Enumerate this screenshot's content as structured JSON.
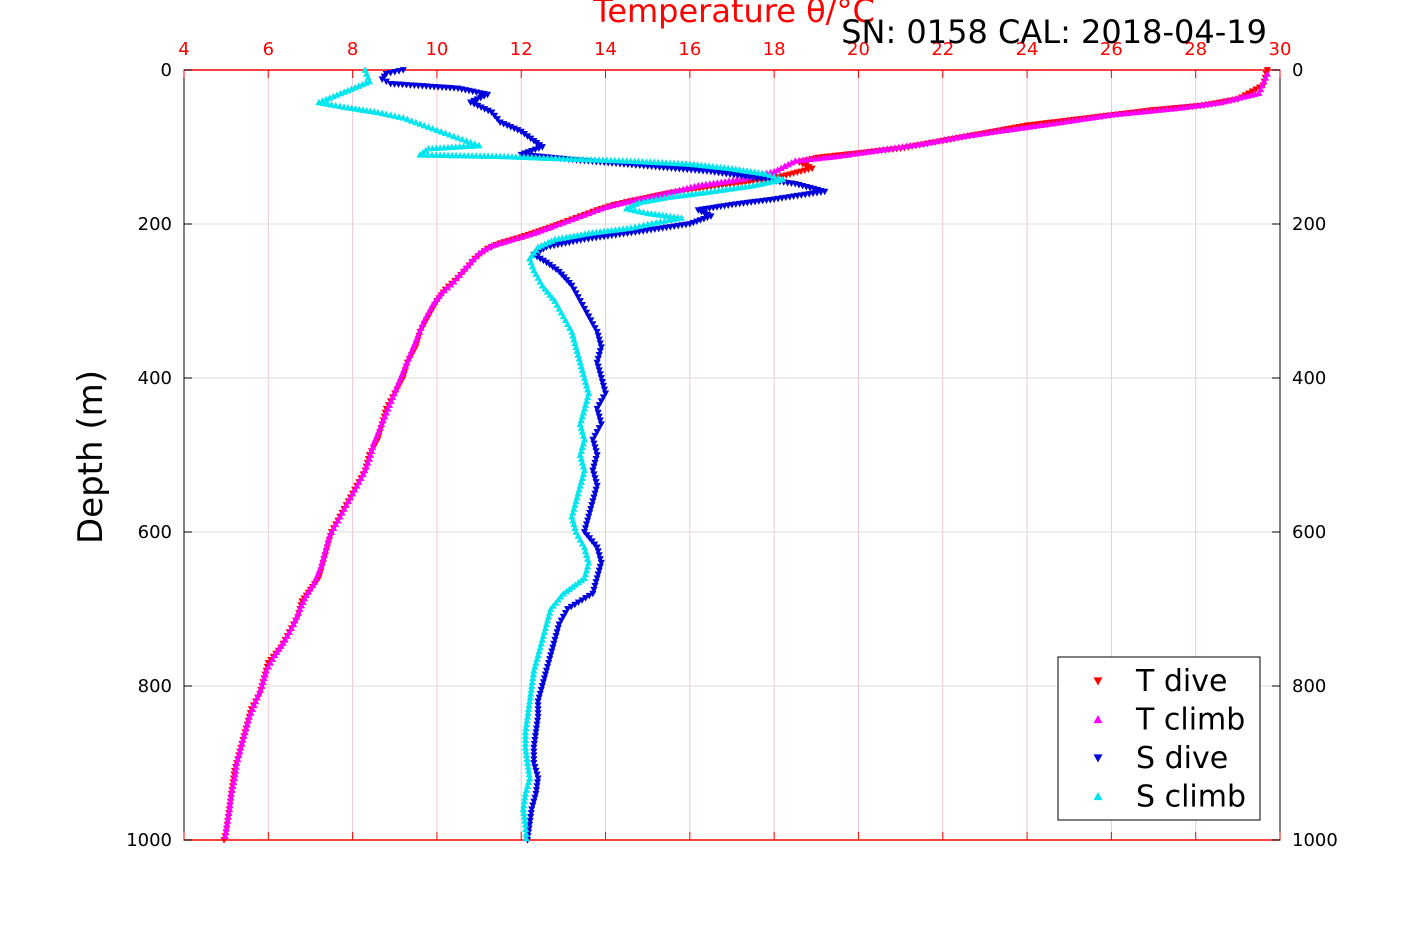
{
  "chart_data": {
    "type": "scatter",
    "title": "Temperature θ/°C",
    "subtitle": "SN: 0158  CAL: 2018-04-19",
    "xlabel": "Temperature θ/°C",
    "ylabel": "Depth (m)",
    "xlim": [
      4,
      30
    ],
    "ylim": [
      1000,
      0
    ],
    "y_reversed": true,
    "x_ticks": [
      "4",
      "6",
      "8",
      "10",
      "12",
      "14",
      "16",
      "18",
      "20",
      "22",
      "24",
      "26",
      "28",
      "30"
    ],
    "y_ticks": [
      "0",
      "200",
      "400",
      "600",
      "800",
      "1000"
    ],
    "grid": true,
    "legend_position": "bottom-right",
    "colors": {
      "x_axis": "#ff0000",
      "grid_x": "#f2c6cf",
      "grid_y": "#dddddd",
      "text": "#000000"
    },
    "series": [
      {
        "name": "T dive",
        "marker": "triangle-down",
        "color": "#ff0000",
        "points": [
          [
            29.7,
            0
          ],
          [
            29.6,
            20
          ],
          [
            29.0,
            38
          ],
          [
            28.2,
            46
          ],
          [
            27.0,
            52
          ],
          [
            25.5,
            62
          ],
          [
            24.0,
            72
          ],
          [
            23.0,
            82
          ],
          [
            22.0,
            92
          ],
          [
            21.0,
            102
          ],
          [
            20.0,
            108
          ],
          [
            19.0,
            114
          ],
          [
            18.6,
            120
          ],
          [
            18.9,
            128
          ],
          [
            18.2,
            138
          ],
          [
            17.5,
            145
          ],
          [
            16.5,
            152
          ],
          [
            15.5,
            160
          ],
          [
            14.8,
            168
          ],
          [
            14.2,
            175
          ],
          [
            13.8,
            182
          ],
          [
            13.4,
            190
          ],
          [
            13.0,
            198
          ],
          [
            12.5,
            208
          ],
          [
            12.0,
            217
          ],
          [
            11.5,
            225
          ],
          [
            11.2,
            232
          ],
          [
            10.9,
            245
          ],
          [
            10.7,
            258
          ],
          [
            10.5,
            270
          ],
          [
            10.2,
            285
          ],
          [
            10.0,
            300
          ],
          [
            9.8,
            320
          ],
          [
            9.6,
            340
          ],
          [
            9.5,
            360
          ],
          [
            9.3,
            380
          ],
          [
            9.2,
            400
          ],
          [
            9.0,
            420
          ],
          [
            8.8,
            440
          ],
          [
            8.7,
            460
          ],
          [
            8.6,
            480
          ],
          [
            8.4,
            500
          ],
          [
            8.3,
            520
          ],
          [
            8.1,
            540
          ],
          [
            7.9,
            560
          ],
          [
            7.7,
            580
          ],
          [
            7.5,
            600
          ],
          [
            7.4,
            620
          ],
          [
            7.3,
            640
          ],
          [
            7.2,
            660
          ],
          [
            7.0,
            675
          ],
          [
            6.8,
            690
          ],
          [
            6.7,
            710
          ],
          [
            6.5,
            730
          ],
          [
            6.3,
            750
          ],
          [
            6.0,
            770
          ],
          [
            5.9,
            790
          ],
          [
            5.8,
            810
          ],
          [
            5.6,
            830
          ],
          [
            5.5,
            850
          ],
          [
            5.4,
            870
          ],
          [
            5.3,
            890
          ],
          [
            5.2,
            910
          ],
          [
            5.15,
            930
          ],
          [
            5.1,
            950
          ],
          [
            5.05,
            970
          ],
          [
            5.0,
            990
          ],
          [
            4.95,
            1000
          ]
        ]
      },
      {
        "name": "T climb",
        "marker": "triangle-up",
        "color": "#ff00ff",
        "points": [
          [
            29.7,
            5
          ],
          [
            29.5,
            30
          ],
          [
            28.6,
            42
          ],
          [
            27.5,
            50
          ],
          [
            26.0,
            58
          ],
          [
            24.8,
            68
          ],
          [
            23.5,
            78
          ],
          [
            22.5,
            86
          ],
          [
            21.5,
            96
          ],
          [
            20.5,
            104
          ],
          [
            19.5,
            112
          ],
          [
            18.5,
            118
          ],
          [
            18.0,
            132
          ],
          [
            17.2,
            142
          ],
          [
            16.2,
            150
          ],
          [
            15.3,
            162
          ],
          [
            14.6,
            170
          ],
          [
            14.0,
            178
          ],
          [
            13.6,
            186
          ],
          [
            13.2,
            194
          ],
          [
            12.8,
            202
          ],
          [
            12.3,
            212
          ],
          [
            11.8,
            220
          ],
          [
            11.3,
            228
          ],
          [
            11.0,
            238
          ],
          [
            10.8,
            250
          ],
          [
            10.6,
            262
          ],
          [
            10.4,
            275
          ],
          [
            10.1,
            290
          ],
          [
            9.9,
            305
          ],
          [
            9.7,
            325
          ],
          [
            9.55,
            345
          ],
          [
            9.4,
            365
          ],
          [
            9.25,
            385
          ],
          [
            9.1,
            405
          ],
          [
            8.95,
            425
          ],
          [
            8.8,
            445
          ],
          [
            8.65,
            465
          ],
          [
            8.5,
            485
          ],
          [
            8.4,
            505
          ],
          [
            8.25,
            525
          ],
          [
            8.05,
            545
          ],
          [
            7.85,
            565
          ],
          [
            7.65,
            585
          ],
          [
            7.45,
            605
          ],
          [
            7.35,
            625
          ],
          [
            7.25,
            645
          ],
          [
            7.1,
            665
          ],
          [
            6.9,
            682
          ],
          [
            6.75,
            700
          ],
          [
            6.6,
            720
          ],
          [
            6.4,
            740
          ],
          [
            6.15,
            760
          ],
          [
            5.95,
            780
          ],
          [
            5.85,
            800
          ],
          [
            5.7,
            820
          ],
          [
            5.55,
            840
          ],
          [
            5.45,
            860
          ],
          [
            5.35,
            880
          ],
          [
            5.25,
            900
          ],
          [
            5.2,
            920
          ],
          [
            5.12,
            940
          ],
          [
            5.08,
            960
          ],
          [
            5.02,
            980
          ],
          [
            4.98,
            995
          ]
        ]
      },
      {
        "name": "S dive",
        "marker": "triangle-down",
        "color": "#0000dd",
        "points": [
          [
            9.2,
            0
          ],
          [
            8.8,
            5
          ],
          [
            8.7,
            12
          ],
          [
            8.9,
            18
          ],
          [
            10.5,
            24
          ],
          [
            11.2,
            32
          ],
          [
            10.8,
            42
          ],
          [
            11.3,
            55
          ],
          [
            11.5,
            68
          ],
          [
            12.0,
            80
          ],
          [
            12.3,
            92
          ],
          [
            12.5,
            100
          ],
          [
            12.0,
            110
          ],
          [
            13.5,
            118
          ],
          [
            15.0,
            125
          ],
          [
            16.5,
            132
          ],
          [
            17.5,
            140
          ],
          [
            18.5,
            148
          ],
          [
            19.2,
            158
          ],
          [
            18.0,
            168
          ],
          [
            17.0,
            175
          ],
          [
            16.2,
            182
          ],
          [
            16.5,
            190
          ],
          [
            16.0,
            200
          ],
          [
            14.8,
            210
          ],
          [
            13.5,
            220
          ],
          [
            12.6,
            230
          ],
          [
            12.3,
            240
          ],
          [
            12.6,
            250
          ],
          [
            12.9,
            262
          ],
          [
            13.2,
            280
          ],
          [
            13.4,
            300
          ],
          [
            13.6,
            320
          ],
          [
            13.8,
            340
          ],
          [
            13.9,
            360
          ],
          [
            13.8,
            380
          ],
          [
            13.9,
            400
          ],
          [
            14.0,
            420
          ],
          [
            13.8,
            440
          ],
          [
            13.9,
            460
          ],
          [
            13.7,
            480
          ],
          [
            13.8,
            500
          ],
          [
            13.7,
            520
          ],
          [
            13.8,
            540
          ],
          [
            13.7,
            560
          ],
          [
            13.6,
            580
          ],
          [
            13.5,
            600
          ],
          [
            13.8,
            620
          ],
          [
            13.9,
            640
          ],
          [
            13.8,
            660
          ],
          [
            13.7,
            680
          ],
          [
            13.1,
            700
          ],
          [
            12.9,
            720
          ],
          [
            12.8,
            740
          ],
          [
            12.7,
            760
          ],
          [
            12.6,
            780
          ],
          [
            12.5,
            800
          ],
          [
            12.4,
            820
          ],
          [
            12.4,
            840
          ],
          [
            12.35,
            860
          ],
          [
            12.3,
            880
          ],
          [
            12.3,
            900
          ],
          [
            12.4,
            920
          ],
          [
            12.35,
            940
          ],
          [
            12.25,
            960
          ],
          [
            12.2,
            980
          ],
          [
            12.15,
            1000
          ]
        ]
      },
      {
        "name": "S climb",
        "marker": "triangle-up",
        "color": "#00e5ee",
        "points": [
          [
            8.3,
            0
          ],
          [
            8.4,
            15
          ],
          [
            7.2,
            42
          ],
          [
            7.8,
            48
          ],
          [
            8.6,
            55
          ],
          [
            9.2,
            62
          ],
          [
            9.6,
            70
          ],
          [
            10.0,
            78
          ],
          [
            10.4,
            86
          ],
          [
            10.8,
            94
          ],
          [
            11.0,
            98
          ],
          [
            9.8,
            102
          ],
          [
            9.6,
            110
          ],
          [
            11.5,
            112
          ],
          [
            13.0,
            115
          ],
          [
            14.5,
            118
          ],
          [
            16.0,
            122
          ],
          [
            17.0,
            128
          ],
          [
            17.8,
            135
          ],
          [
            18.2,
            142
          ],
          [
            17.5,
            150
          ],
          [
            16.5,
            158
          ],
          [
            15.5,
            165
          ],
          [
            14.8,
            172
          ],
          [
            14.5,
            180
          ],
          [
            15.0,
            186
          ],
          [
            15.8,
            192
          ],
          [
            15.2,
            198
          ],
          [
            14.6,
            205
          ],
          [
            13.6,
            212
          ],
          [
            12.8,
            220
          ],
          [
            12.4,
            230
          ],
          [
            12.2,
            245
          ],
          [
            12.3,
            260
          ],
          [
            12.5,
            280
          ],
          [
            12.8,
            300
          ],
          [
            13.0,
            320
          ],
          [
            13.2,
            340
          ],
          [
            13.3,
            360
          ],
          [
            13.4,
            380
          ],
          [
            13.5,
            400
          ],
          [
            13.6,
            420
          ],
          [
            13.5,
            440
          ],
          [
            13.4,
            460
          ],
          [
            13.5,
            480
          ],
          [
            13.4,
            500
          ],
          [
            13.5,
            520
          ],
          [
            13.4,
            540
          ],
          [
            13.3,
            560
          ],
          [
            13.2,
            580
          ],
          [
            13.3,
            600
          ],
          [
            13.5,
            620
          ],
          [
            13.6,
            640
          ],
          [
            13.5,
            660
          ],
          [
            13.0,
            680
          ],
          [
            12.7,
            700
          ],
          [
            12.6,
            720
          ],
          [
            12.5,
            740
          ],
          [
            12.4,
            760
          ],
          [
            12.3,
            780
          ],
          [
            12.25,
            800
          ],
          [
            12.2,
            820
          ],
          [
            12.15,
            840
          ],
          [
            12.1,
            860
          ],
          [
            12.1,
            880
          ],
          [
            12.15,
            900
          ],
          [
            12.2,
            920
          ],
          [
            12.1,
            940
          ],
          [
            12.05,
            960
          ],
          [
            12.1,
            980
          ],
          [
            12.12,
            998
          ]
        ]
      }
    ]
  }
}
